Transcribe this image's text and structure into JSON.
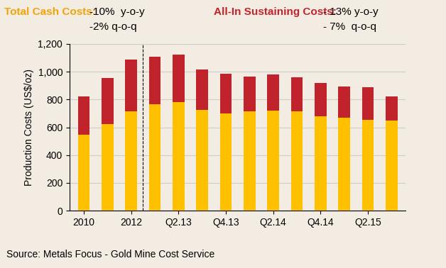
{
  "chart_data": {
    "type": "bar",
    "stacked": true,
    "grid": true,
    "y_label": "Production Costs (US$/oz)",
    "source": "Source: Metals Focus - Gold Mine Cost Service",
    "categories": [
      "2010",
      null,
      "2012",
      null,
      "Q2.13",
      null,
      "Q4.13",
      null,
      "Q2.14",
      null,
      "Q4.14",
      null,
      "Q2.15",
      null
    ],
    "series": [
      {
        "name": "Total Cash Costs:",
        "color": "#FFC000",
        "annotations": [
          "-10%  y-o-y",
          "-2% q-o-q"
        ],
        "values": [
          545,
          625,
          715,
          765,
          780,
          725,
          700,
          715,
          720,
          715,
          680,
          670,
          655,
          650
        ]
      },
      {
        "name": "All-In Sustaining Costs:",
        "color": "#C0232B",
        "annotations": [
          "- 13% y-o-y",
          "- 7%  q-o-q"
        ],
        "values": [
          275,
          330,
          375,
          345,
          345,
          290,
          285,
          250,
          260,
          245,
          240,
          225,
          235,
          170
        ]
      }
    ],
    "ylim": [
      0,
      1200
    ],
    "yticks": [
      0,
      200,
      400,
      600,
      800,
      {
        "value": 1000,
        "label": "1,000"
      },
      {
        "value": 1200,
        "label": "1,200"
      }
    ]
  }
}
